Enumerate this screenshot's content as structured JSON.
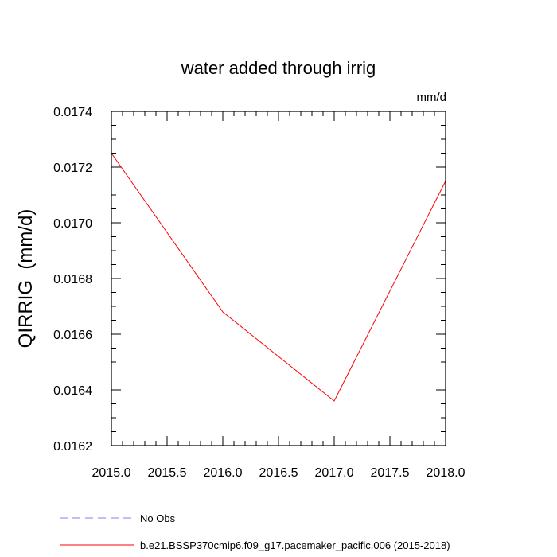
{
  "chart_data": {
    "type": "line",
    "title": "water added through irrig",
    "units_label": "mm/d",
    "xlabel": "",
    "ylabel": "QIRRIG  (mm/d)",
    "xlim": [
      2015.0,
      2018.0
    ],
    "ylim": [
      0.0162,
      0.0174
    ],
    "x_ticks": [
      2015.0,
      2015.5,
      2016.0,
      2016.5,
      2017.0,
      2017.5,
      2018.0
    ],
    "x_tick_labels": [
      "2015.0",
      "2015.5",
      "2016.0",
      "2016.5",
      "2017.0",
      "2017.5",
      "2018.0"
    ],
    "y_ticks": [
      0.0162,
      0.0164,
      0.0166,
      0.0168,
      0.017,
      0.0172,
      0.0174
    ],
    "y_tick_labels": [
      "0.0162",
      "0.0164",
      "0.0166",
      "0.0168",
      "0.0170",
      "0.0172",
      "0.0174"
    ],
    "grid": false,
    "series": [
      {
        "name": "b.e21.BSSP370cmip6.f09_g17.pacemaker_pacific.006 (2015-2018)",
        "color": "#ff0000",
        "dash": "solid",
        "x": [
          2015.0,
          2016.0,
          2017.0,
          2018.0
        ],
        "y": [
          0.01725,
          0.01668,
          0.01636,
          0.01715
        ]
      }
    ],
    "legend": {
      "placement": "bottom-left",
      "entries": [
        {
          "label": "No Obs",
          "color": "#7f7fff",
          "dash": "dashed"
        },
        {
          "label": "b.e21.BSSP370cmip6.f09_g17.pacemaker_pacific.006 (2015-2018)",
          "color": "#ff0000",
          "dash": "solid"
        }
      ]
    }
  }
}
